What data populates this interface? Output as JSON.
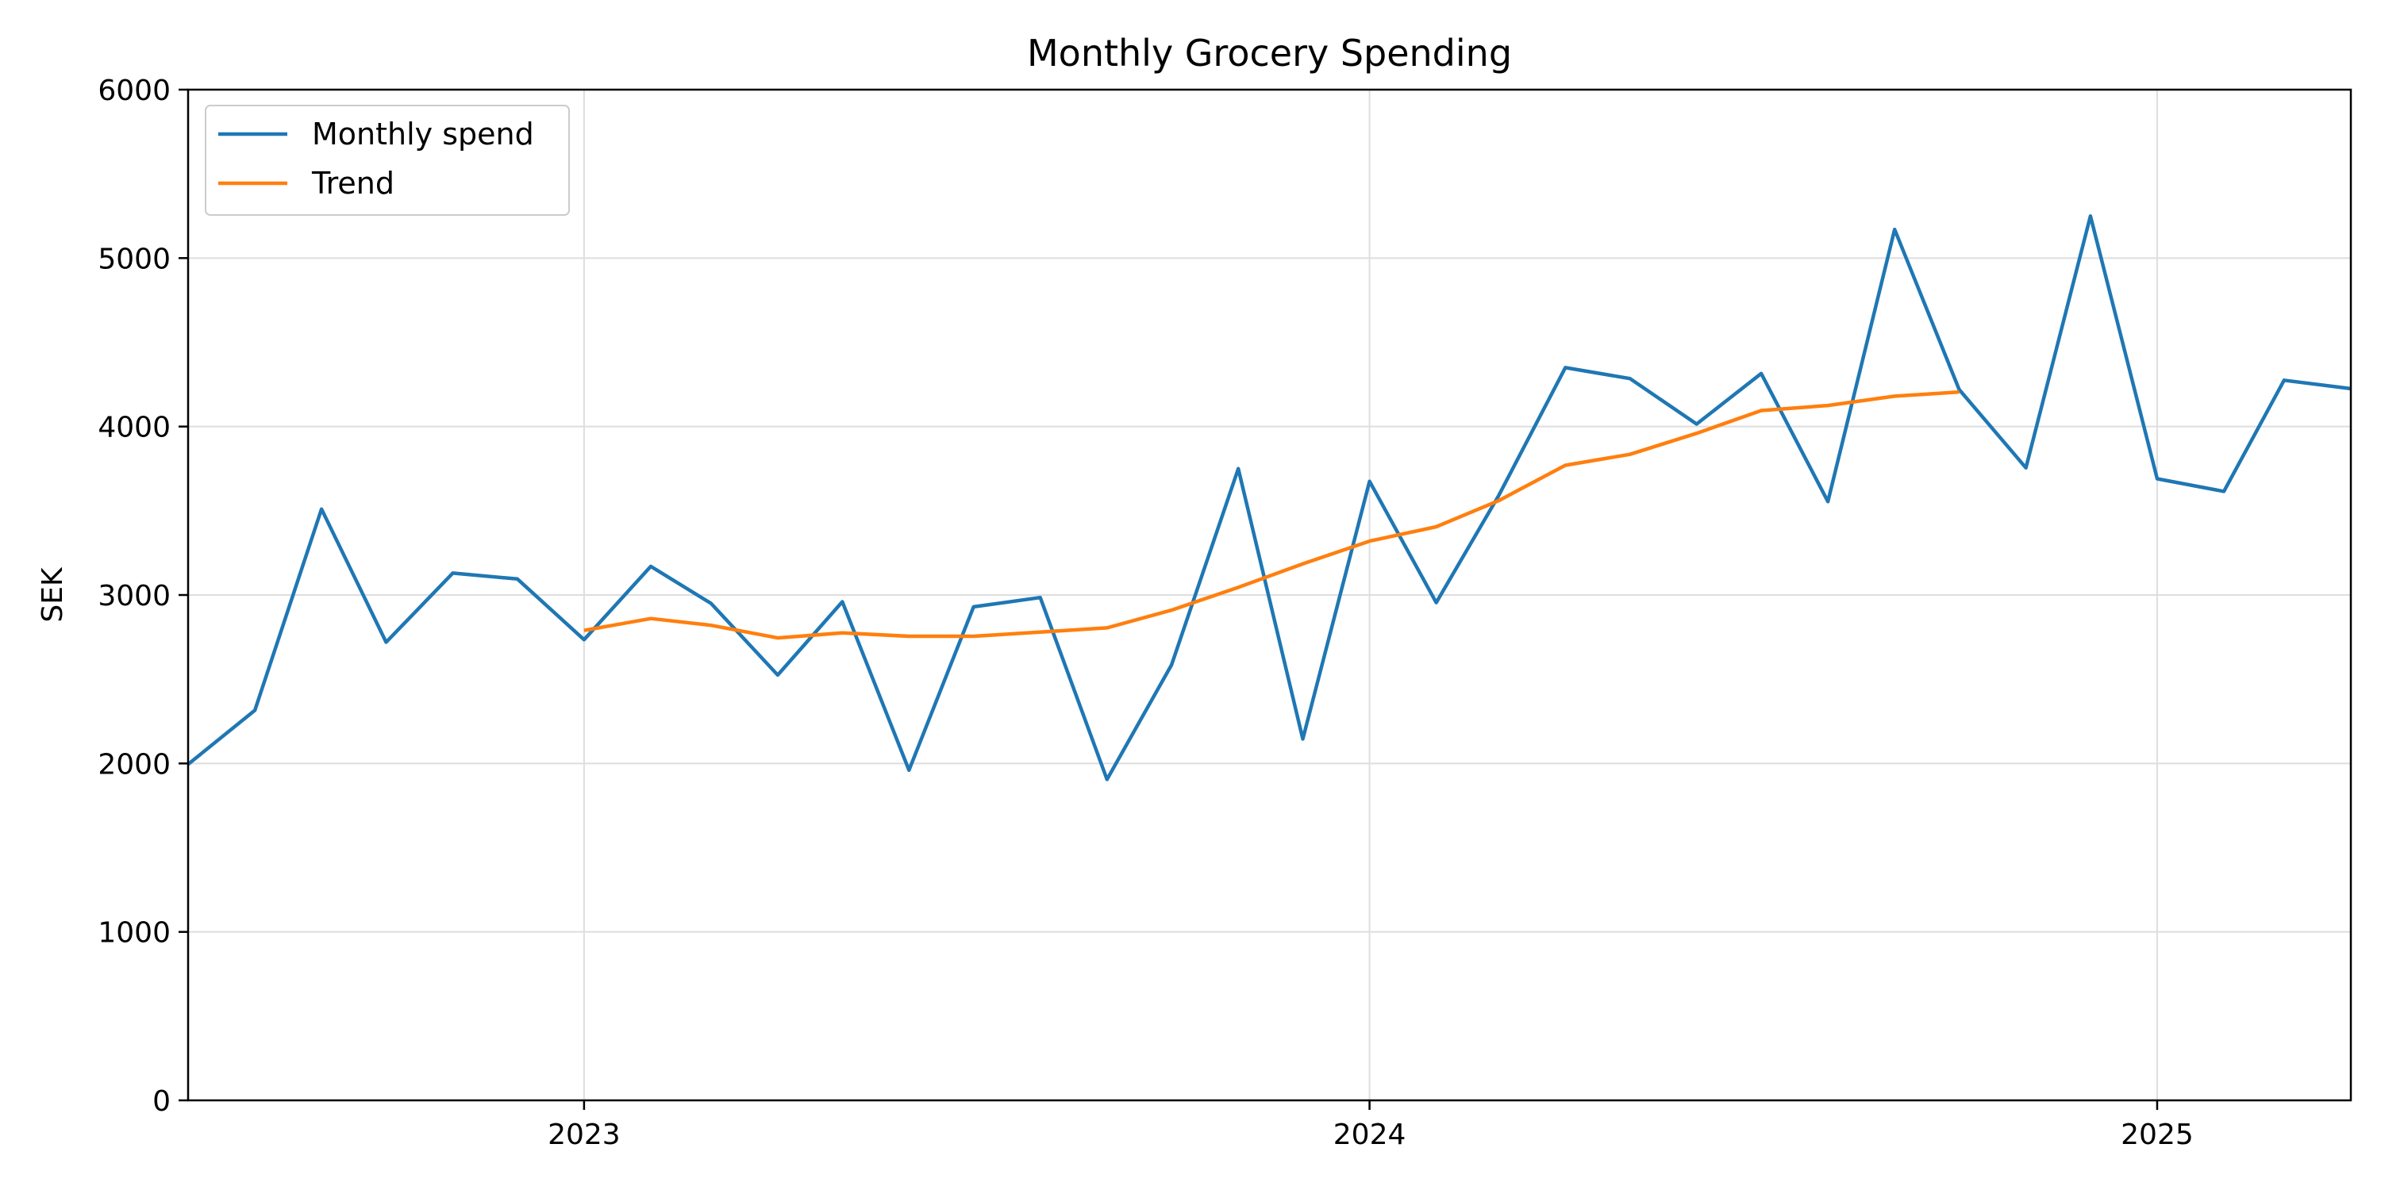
{
  "chart_data": {
    "type": "line",
    "title": "Monthly Grocery Spending",
    "xlabel": "",
    "ylabel": "SEK",
    "ylim": [
      0,
      6000
    ],
    "xlim": [
      "2022-07-01",
      "2025-04-01"
    ],
    "x_ticks": [
      {
        "date": "2023-01-01",
        "label": "2023"
      },
      {
        "date": "2024-01-01",
        "label": "2024"
      },
      {
        "date": "2025-01-01",
        "label": "2025"
      }
    ],
    "y_ticks": [
      0,
      1000,
      2000,
      3000,
      4000,
      5000,
      6000
    ],
    "grid": true,
    "legend_position": "top-left",
    "series": [
      {
        "name": "Monthly spend",
        "color": "#1f77b4",
        "x": [
          "2022-07-01",
          "2022-08-01",
          "2022-09-01",
          "2022-10-01",
          "2022-11-01",
          "2022-12-01",
          "2023-01-01",
          "2023-02-01",
          "2023-03-01",
          "2023-04-01",
          "2023-05-01",
          "2023-06-01",
          "2023-07-01",
          "2023-08-01",
          "2023-09-01",
          "2023-10-01",
          "2023-11-01",
          "2023-12-01",
          "2024-01-01",
          "2024-02-01",
          "2024-03-01",
          "2024-04-01",
          "2024-05-01",
          "2024-06-01",
          "2024-07-01",
          "2024-08-01",
          "2024-09-01",
          "2024-10-01",
          "2024-11-01",
          "2024-12-01",
          "2025-01-01",
          "2025-02-01",
          "2025-03-01",
          "2025-04-01"
        ],
        "values": [
          1995,
          2315,
          3510,
          2720,
          3130,
          3095,
          2735,
          3170,
          2950,
          2525,
          2960,
          1960,
          2930,
          2985,
          1905,
          2585,
          3750,
          2145,
          3675,
          2955,
          3590,
          4350,
          4285,
          4015,
          4315,
          3555,
          5170,
          4220,
          3755,
          5250,
          3690,
          3615,
          4275,
          4225
        ]
      },
      {
        "name": "Trend",
        "color": "#ff7f0e",
        "x": [
          "2023-01-01",
          "2023-02-01",
          "2023-03-01",
          "2023-04-01",
          "2023-05-01",
          "2023-06-01",
          "2023-07-01",
          "2023-08-01",
          "2023-09-01",
          "2023-10-01",
          "2023-11-01",
          "2023-12-01",
          "2024-01-01",
          "2024-02-01",
          "2024-03-01",
          "2024-04-01",
          "2024-05-01",
          "2024-06-01",
          "2024-07-01",
          "2024-08-01",
          "2024-09-01",
          "2024-10-01"
        ],
        "values": [
          2790,
          2860,
          2820,
          2745,
          2775,
          2755,
          2755,
          2780,
          2805,
          2910,
          3045,
          3185,
          3320,
          3405,
          3560,
          3770,
          3835,
          3960,
          4095,
          4125,
          4180,
          4205
        ]
      }
    ]
  }
}
